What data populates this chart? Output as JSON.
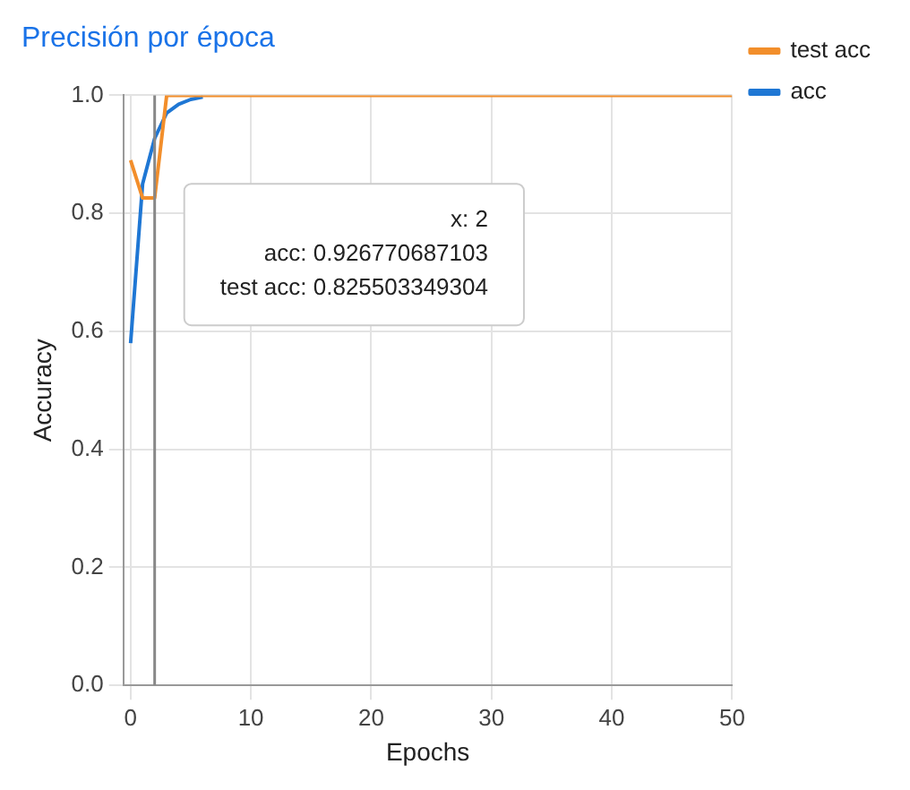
{
  "chart_data": {
    "type": "line",
    "title": "Precisión por época",
    "xlabel": "Epochs",
    "ylabel": "Accuracy",
    "x": [
      0,
      1,
      2,
      3,
      4,
      5,
      6,
      7,
      8,
      10,
      20,
      30,
      40,
      50
    ],
    "series": [
      {
        "name": "acc",
        "color": "#1f77d4",
        "x": [
          0,
          1,
          2,
          3,
          4,
          5,
          6
        ],
        "values": [
          0.58,
          0.85,
          0.927,
          0.97,
          0.985,
          0.993,
          0.997
        ]
      },
      {
        "name": "test acc",
        "color": "#f28e2b",
        "values": [
          0.89,
          0.826,
          0.826,
          1.0,
          1.0,
          1.0,
          1.0,
          1.0,
          1.0,
          1.0,
          1.0,
          1.0,
          1.0,
          1.0
        ]
      }
    ],
    "xlim": [
      -0.6,
      50
    ],
    "xticks": [
      0,
      10,
      20,
      30,
      40,
      50
    ],
    "ylim": [
      0,
      1
    ],
    "yticks": [
      {
        "value": 0,
        "label": "0.0"
      },
      0.2,
      0.4,
      0.6,
      0.8,
      {
        "value": 1,
        "label": "1.0"
      }
    ],
    "grid": true,
    "legend": "top right",
    "marker": "none",
    "line_style": "solid",
    "ref_lines": [
      {
        "axis": "x",
        "value": 2,
        "color": "#888888"
      }
    ],
    "annotations": [
      "x: 2",
      "acc: 0.926770687103",
      "test acc: 0.825503349304"
    ]
  }
}
